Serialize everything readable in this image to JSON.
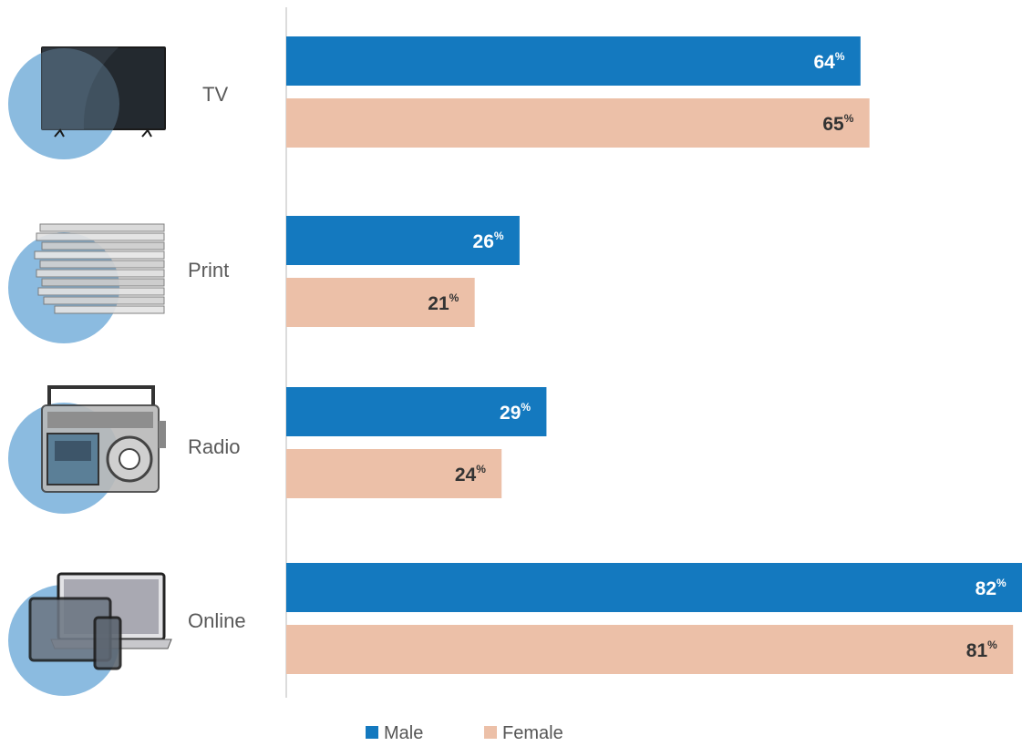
{
  "chart_data": {
    "type": "bar",
    "orientation": "horizontal",
    "categories": [
      "TV",
      "Print",
      "Radio",
      "Online"
    ],
    "series": [
      {
        "name": "Male",
        "values": [
          64,
          26,
          29,
          82
        ],
        "color": "#1479bf"
      },
      {
        "name": "Female",
        "values": [
          65,
          21,
          24,
          81
        ],
        "color": "#ecc0a8"
      }
    ],
    "value_suffix": "%",
    "xlim": [
      0,
      82
    ],
    "grid": false,
    "legend": "bottom-center",
    "icons": [
      "tv-icon",
      "newspaper-icon",
      "radio-icon",
      "devices-icon"
    ]
  }
}
